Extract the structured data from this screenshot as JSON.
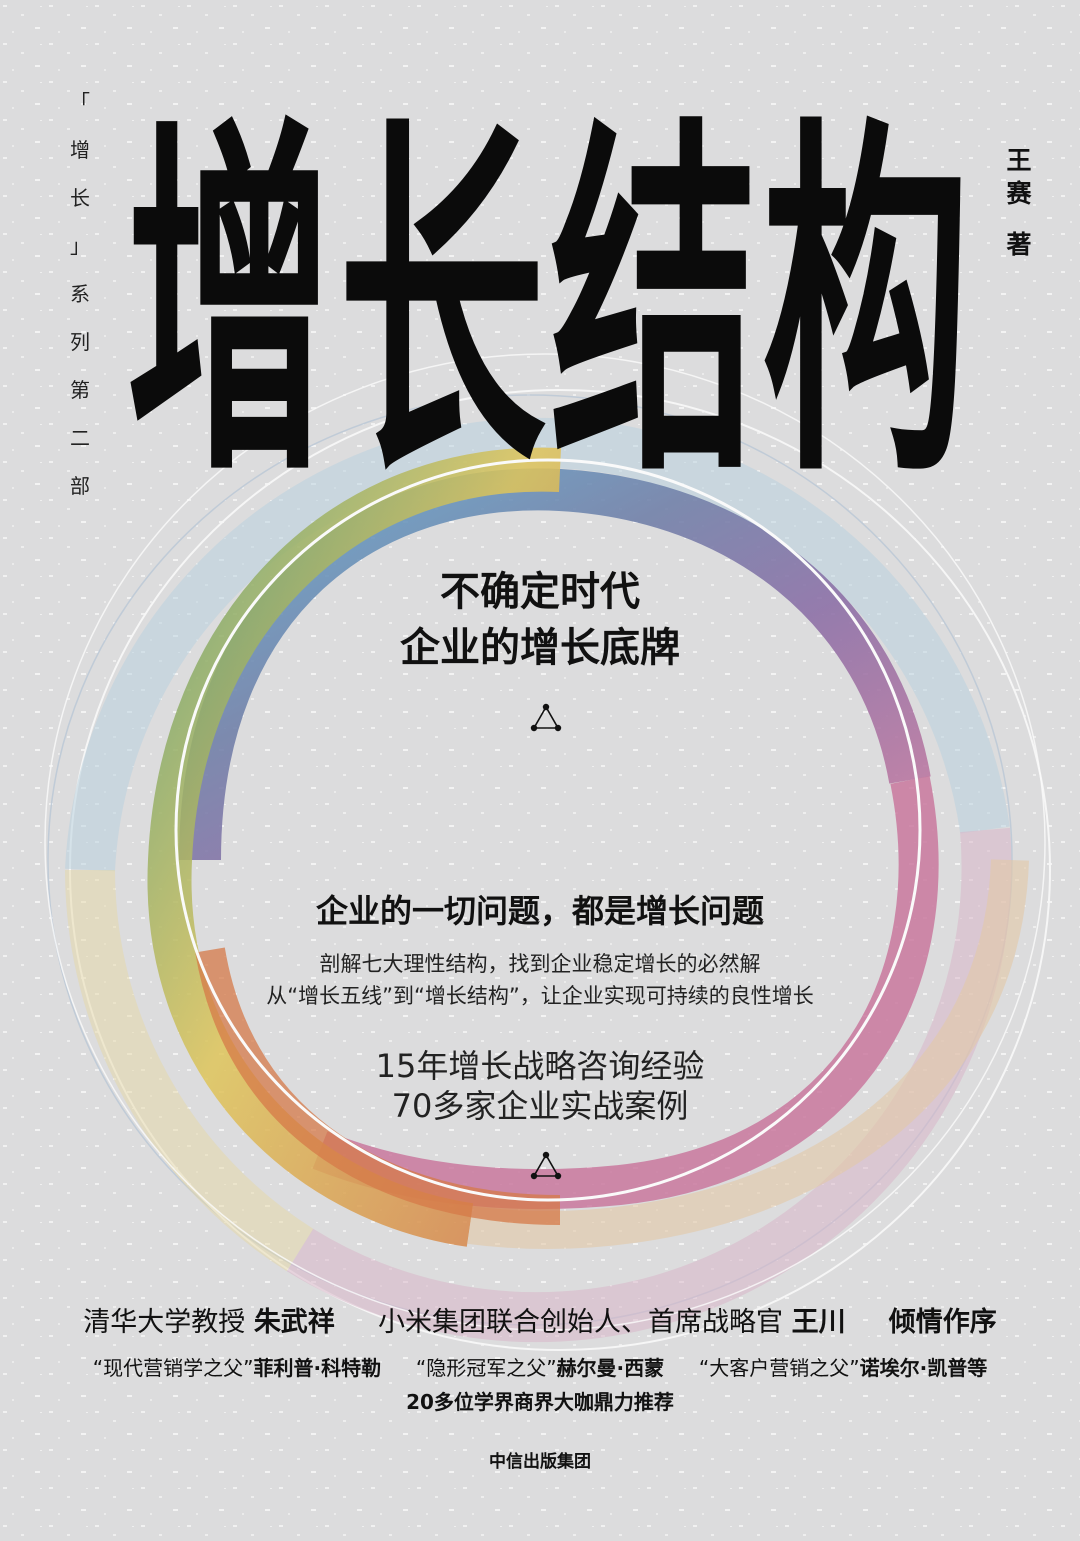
{
  "series": {
    "chars": [
      "「",
      "增",
      "长",
      "」",
      "系",
      "列",
      "第",
      "二",
      "部"
    ]
  },
  "author": {
    "name_chars": [
      "王",
      "赛"
    ],
    "verb": "著"
  },
  "title": "增长结构",
  "tagline": {
    "line1": "不确定时代",
    "line2": "企业的增长底牌"
  },
  "main_claim": "企业的一切问题，都是增长问题",
  "sub_claims": {
    "line1": "剖解七大理性结构，找到企业稳定增长的必然解",
    "line2": "从“增长五线”到“增长结构”，让企业实现可持续的良性增长"
  },
  "experience": {
    "line1": "15年增长战略咨询经验",
    "line2": "70多家企业实战案例"
  },
  "preface": {
    "role1": "清华大学教授",
    "name1": "朱武祥",
    "role2": "小米集团联合创始人、首席战略官",
    "name2": "王川",
    "suffix": "倾情作序"
  },
  "recommenders": {
    "epithet1": "“现代营销学之父”",
    "name1": "菲利普·科特勒",
    "epithet2": "“隐形冠军之父”",
    "name2": "赫尔曼·西蒙",
    "epithet3": "“大客户营销之父”",
    "name3": "诺埃尔·凯普等"
  },
  "recommend_line": "20多位学界商界大咖鼎力推荐",
  "publisher": "中信出版集团",
  "colors": {
    "background": "#dcdcdd",
    "ink": "#111111",
    "ring_blue": "#5ea9cf",
    "ring_green": "#5f9f6e",
    "ring_yellow": "#dfc55a",
    "ring_orange": "#d57a48",
    "ring_pink": "#c9789e",
    "ring_purple": "#8b6ea6",
    "ring_slate": "#6f7fa8"
  }
}
